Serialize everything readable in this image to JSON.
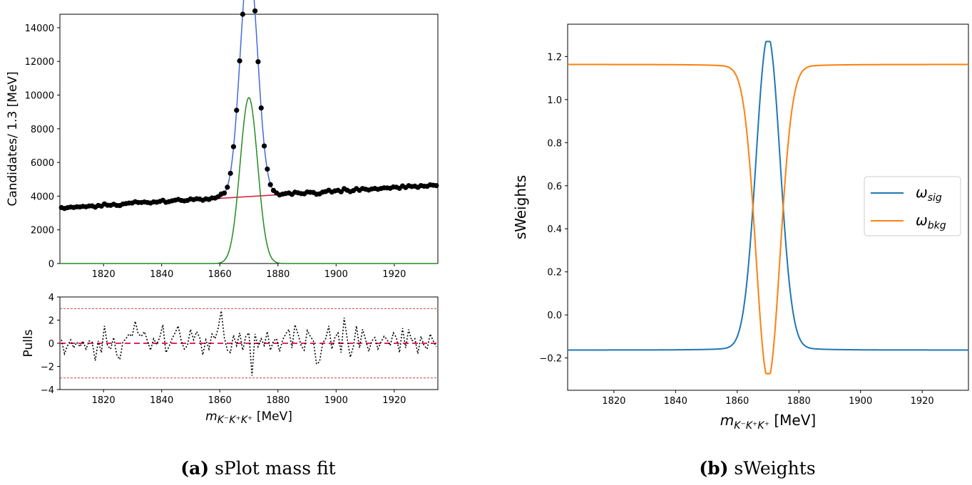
{
  "chart_data": [
    {
      "panel": "a-top",
      "type": "scatter",
      "xlabel": "",
      "ylabel": "Candidates/ 1.3 [MeV]",
      "xlim": [
        1805,
        1935
      ],
      "ylim": [
        0,
        14800
      ],
      "xticks": [
        "1820",
        "1840",
        "1860",
        "1880",
        "1900",
        "1920"
      ],
      "yticks": [
        "0",
        "2000",
        "4000",
        "6000",
        "8000",
        "10000",
        "12000",
        "14000"
      ],
      "series": [
        {
          "name": "total",
          "color": "#4169e1"
        },
        {
          "name": "signal",
          "color": "#228b22"
        },
        {
          "name": "background",
          "color": "#dc143c"
        },
        {
          "name": "data",
          "color": "#000000"
        }
      ],
      "signal_model": {
        "mean": 1870,
        "sigma": 3.0,
        "peak": 9850
      },
      "background_model": {
        "start": 3300,
        "end": 4650
      }
    },
    {
      "panel": "a-bottom",
      "type": "line",
      "xlabel_main": "m",
      "xlabel_sub": "K⁻K⁺K⁺",
      "xlabel_unit": " [MeV]",
      "ylabel": "Pulls",
      "xlim": [
        1805,
        1935
      ],
      "ylim": [
        -4,
        4
      ],
      "xticks": [
        "1820",
        "1840",
        "1860",
        "1880",
        "1900",
        "1920"
      ],
      "yticks": [
        "−4",
        "−2",
        "0",
        "2",
        "4"
      ],
      "reference_lines": [
        -3,
        0,
        3
      ],
      "pulls": [
        0.3,
        -0.9,
        -0.2,
        0.3,
        -0.4,
        0.1,
        -0.3,
        0.2,
        -0.5,
        0.2,
        0.1,
        -1.5,
        0.2,
        -0.8,
        1.5,
        -0.2,
        -0.5,
        0.5,
        -1.0,
        -1.4,
        0.1,
        0.4,
        0.8,
        0.6,
        1.9,
        0.8,
        0.6,
        1.0,
        0.2,
        -0.6,
        0.4,
        -0.1,
        0.5,
        1.6,
        -0.8,
        -0.3,
        0.4,
        0.9,
        1.5,
        0.2,
        -0.5,
        -0.2,
        1.2,
        0.3,
        1.0,
        0.5,
        -1.0,
        0.3,
        -0.5,
        0.8,
        0.4,
        1.3,
        2.8,
        0.5,
        -0.6,
        -0.8,
        0.7,
        -0.2,
        0.9,
        -0.6,
        0.6,
        0.9,
        -2.8,
        0.8,
        -0.3,
        0.4,
        -0.2,
        1.0,
        -0.6,
        0.2,
        0.4,
        -0.7,
        0.3,
        0.8,
        1.2,
        -0.4,
        1.6,
        0.8,
        -0.2,
        -0.6,
        1.1,
        0.6,
        0.2,
        -1.8,
        -1.6,
        0.0,
        0.4,
        1.5,
        -0.5,
        0.5,
        0.9,
        -0.8,
        2.2,
        0.4,
        -1.2,
        -0.3,
        1.5,
        -0.4,
        1.2,
        0.3,
        -0.7,
        0.2,
        0.5,
        -0.5,
        0.1,
        0.6,
        0.3,
        -0.2,
        0.9,
        0.5,
        -0.8,
        1.3,
        -0.4,
        1.2,
        0.2,
        0.4,
        -0.9,
        0.6,
        -0.2,
        -0.5,
        0.8,
        0.2,
        -0.3
      ]
    },
    {
      "panel": "b",
      "type": "line",
      "xlabel_main": "m",
      "xlabel_sub": "K⁻K⁺K⁺",
      "xlabel_unit": " [MeV]",
      "ylabel": "sWeights",
      "xlim": [
        1805,
        1935
      ],
      "ylim": [
        -0.35,
        1.35
      ],
      "xticks": [
        "1820",
        "1840",
        "1860",
        "1880",
        "1900",
        "1920"
      ],
      "yticks": [
        "−0.2",
        "0.0",
        "0.2",
        "0.4",
        "0.6",
        "0.8",
        "1.0",
        "1.2"
      ],
      "series": [
        {
          "name": "ω_sig",
          "label": "ω",
          "label_sub": "sig",
          "color": "#1f77b4",
          "baseline": -0.163,
          "peak": 1.27
        },
        {
          "name": "ω_bkg",
          "label": "ω",
          "label_sub": "bkg",
          "color": "#ff7f0e",
          "baseline": 1.163,
          "peak": -0.273
        }
      ]
    }
  ],
  "captions": [
    {
      "tag": "(a)",
      "text": " sPlot mass fit"
    },
    {
      "tag": "(b)",
      "text": " sWeights"
    }
  ]
}
